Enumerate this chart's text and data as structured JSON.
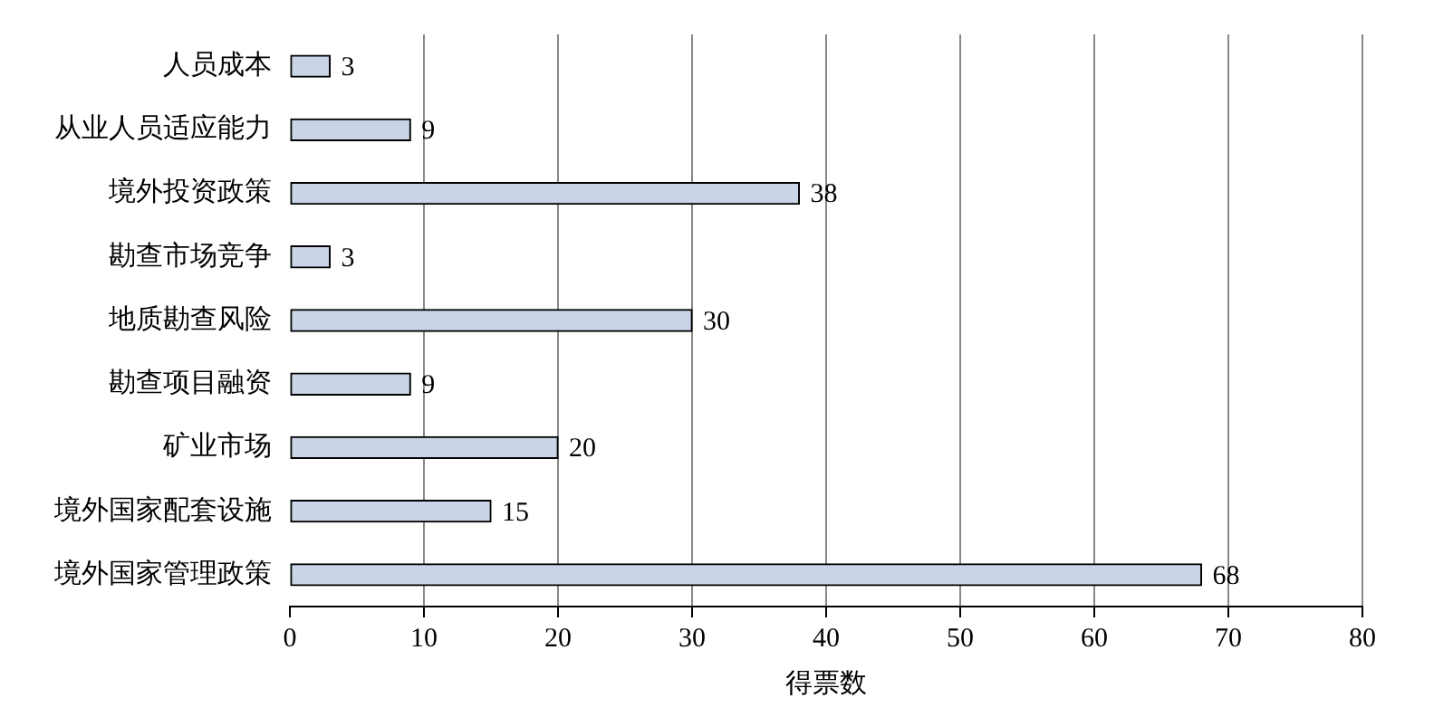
{
  "chart_data": {
    "type": "bar",
    "orientation": "horizontal",
    "xlabel": "得票数",
    "categories": [
      "人员成本",
      "从业人员适应能力",
      "境外投资政策",
      "勘查市场竞争",
      "地质勘查风险",
      "勘查项目融资",
      "矿业市场",
      "境外国家配套设施",
      "境外国家管理政策"
    ],
    "values": [
      3,
      9,
      38,
      3,
      30,
      9,
      20,
      15,
      68
    ],
    "color": "#c9d5e6",
    "xlim": [
      0,
      80
    ],
    "xticks": [
      0,
      10,
      20,
      30,
      40,
      50,
      60,
      70,
      80
    ],
    "grid": "x",
    "data_labels": true,
    "legend": false
  }
}
